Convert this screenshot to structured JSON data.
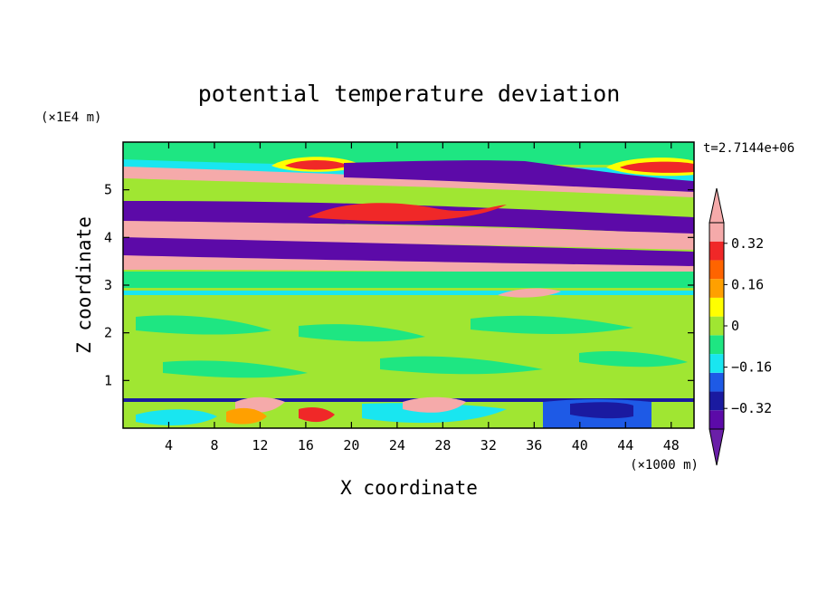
{
  "chart_data": {
    "type": "heatmap",
    "title": "potential temperature deviation",
    "xlabel": "X coordinate",
    "ylabel": "Z coordinate",
    "x_unit": "(×1000 m)",
    "y_unit": "(×1E4 m)",
    "time_label": "t=2.7144e+06",
    "xlim": [
      0,
      50
    ],
    "ylim": [
      0,
      6
    ],
    "x_ticks": [
      4,
      8,
      12,
      16,
      20,
      24,
      28,
      32,
      36,
      40,
      44,
      48
    ],
    "y_ticks": [
      1,
      2,
      3,
      4,
      5
    ],
    "colorbar": {
      "levels": [
        -0.4,
        -0.32,
        -0.24,
        -0.16,
        -0.08,
        0,
        0.08,
        0.16,
        0.24,
        0.32,
        0.4
      ],
      "tick_labels": [
        "0.32",
        "0.16",
        "0",
        "−0.16",
        "−0.32"
      ],
      "tick_values": [
        0.32,
        0.16,
        0,
        -0.16,
        -0.32
      ],
      "colors": [
        "#5c0aa8",
        "#1a1aa0",
        "#1e5ae6",
        "#19e6f0",
        "#1ee682",
        "#a0e632",
        "#ffff00",
        "#ffa000",
        "#ff6400",
        "#f02828",
        "#f5aaaa"
      ],
      "under_color": "#6a1fa8",
      "over_color": "#f5aaaa"
    }
  }
}
